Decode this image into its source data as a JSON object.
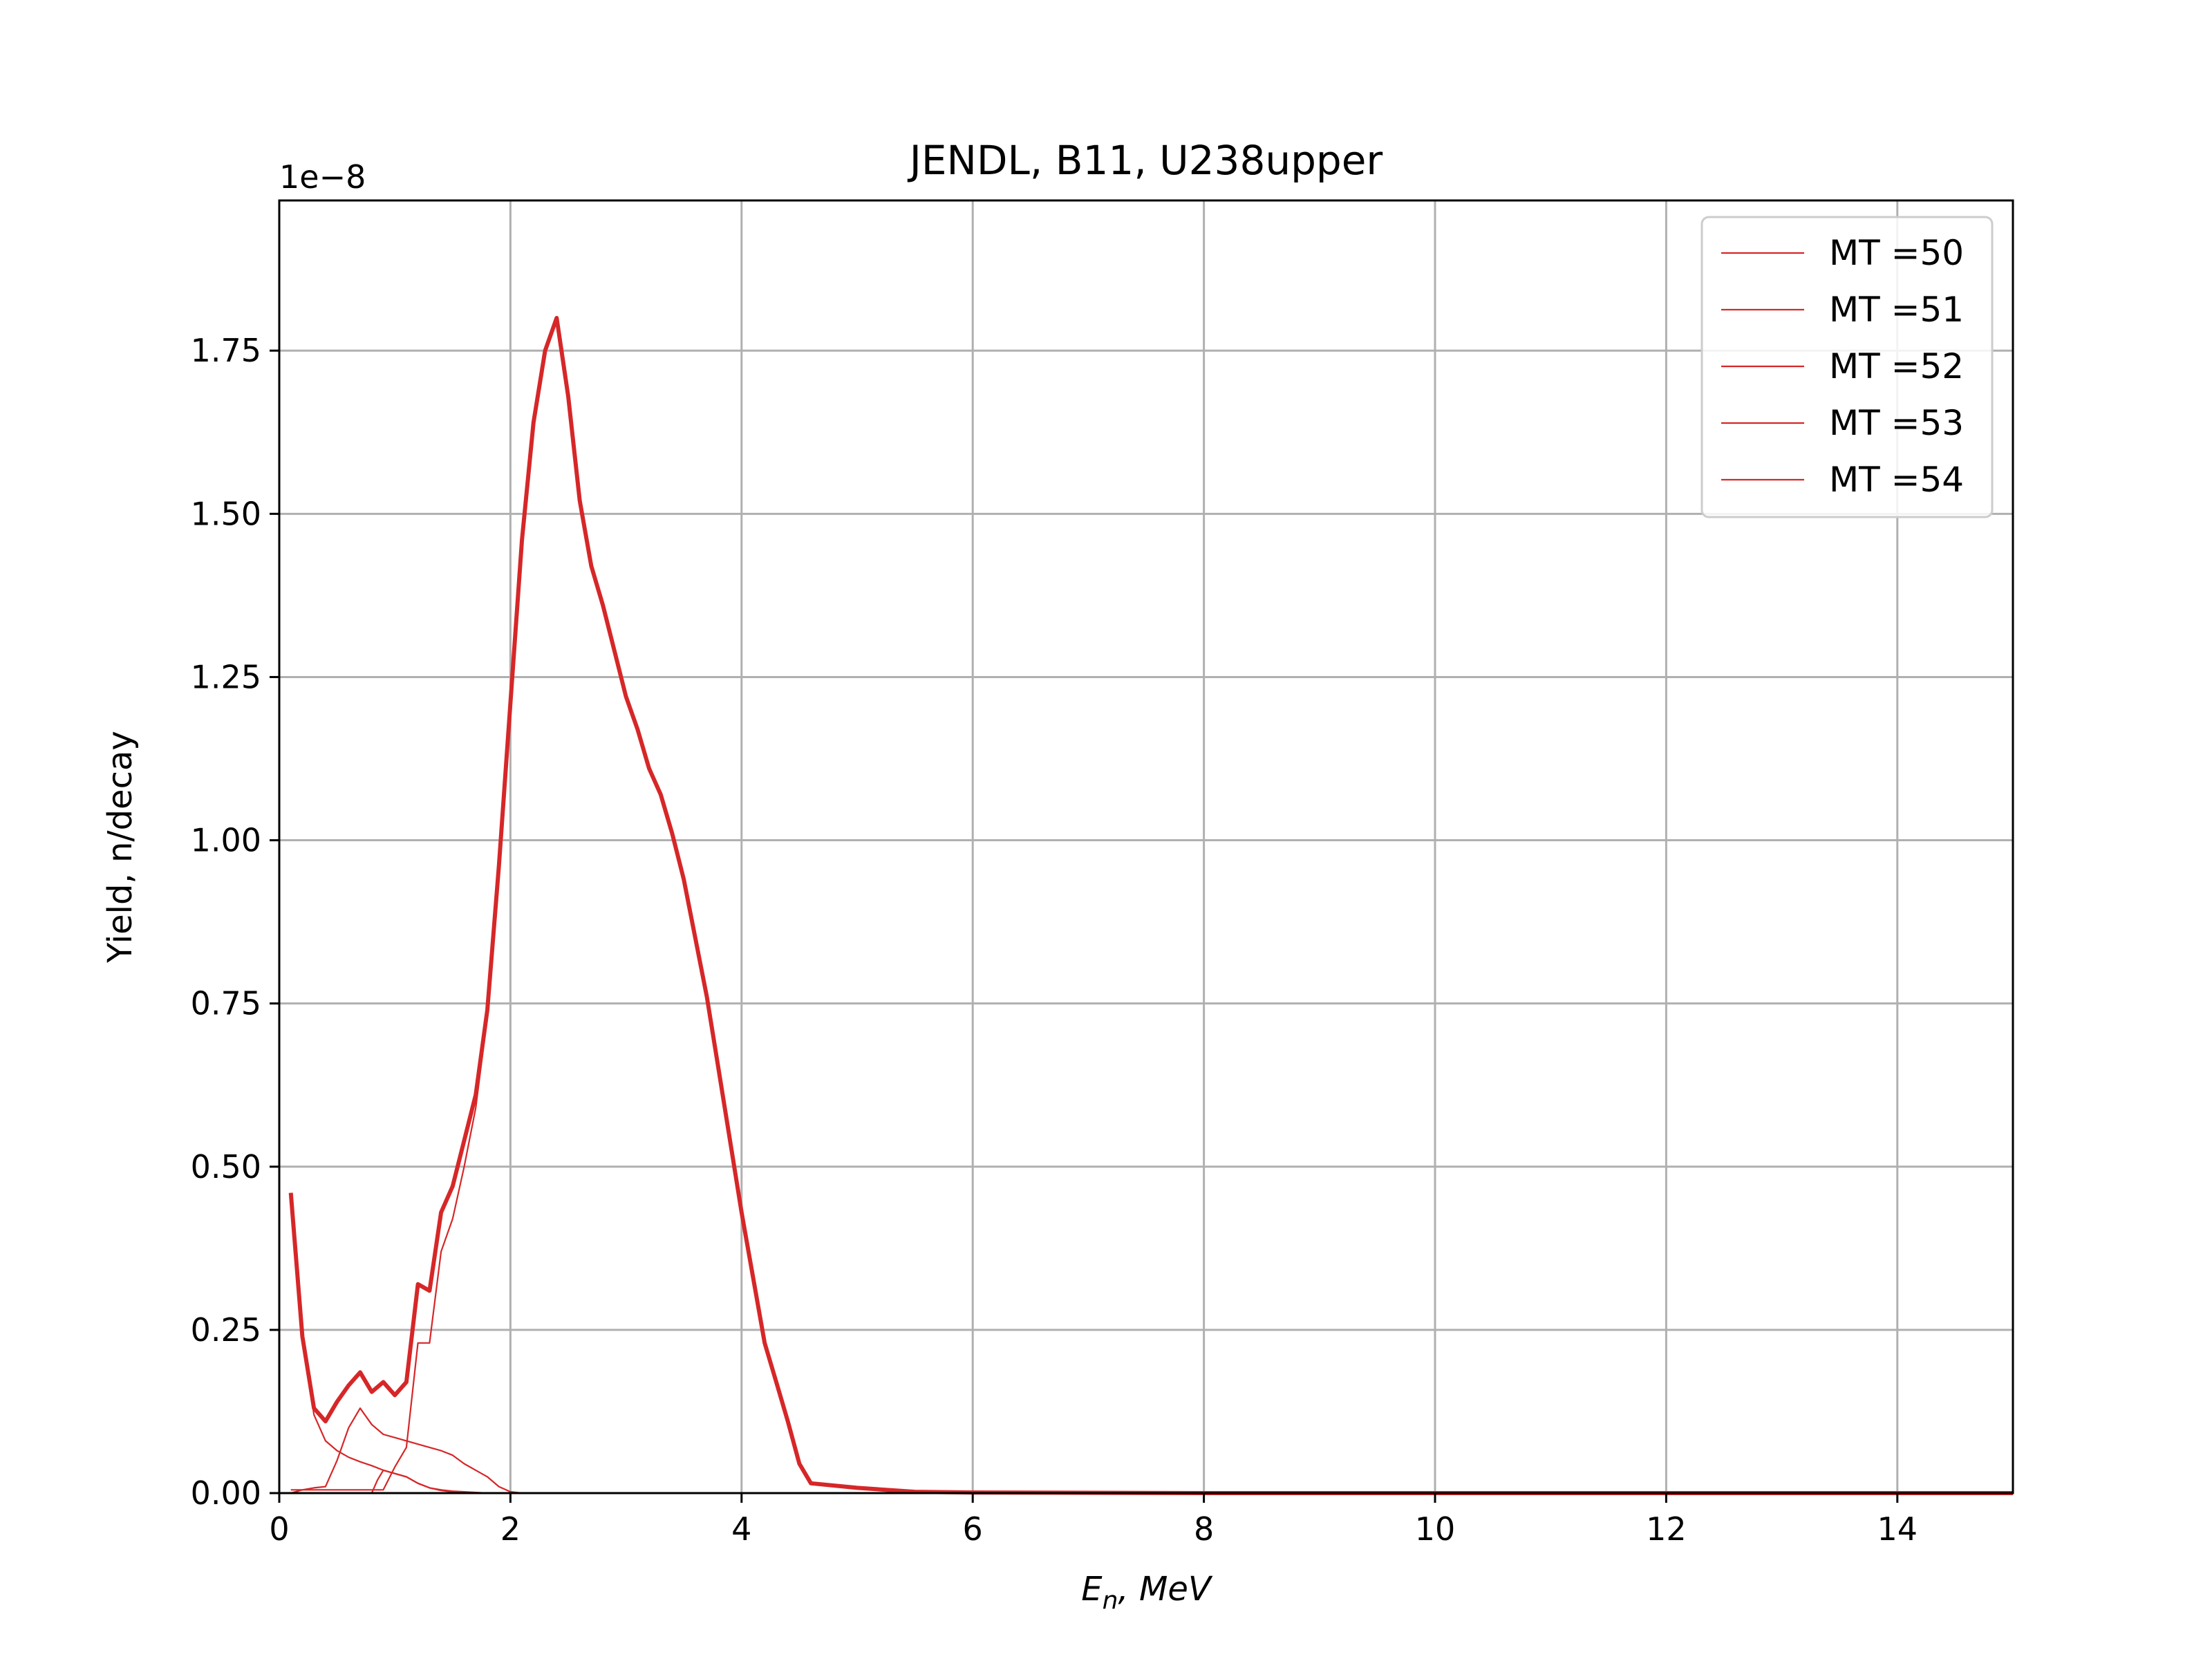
{
  "chart_data": {
    "type": "line",
    "title": "JENDL, B11, U238upper",
    "xlabel_main": "E",
    "xlabel_sub": "n",
    "xlabel_rest": ", MeV",
    "ylabel": "Yield, n/decay",
    "y_offset_label": "1e−8",
    "xlim": [
      0,
      15
    ],
    "ylim": [
      0,
      1.98
    ],
    "x_ticks": [
      0,
      2,
      4,
      6,
      8,
      10,
      12,
      14
    ],
    "x_tick_labels": [
      "0",
      "2",
      "4",
      "6",
      "8",
      "10",
      "12",
      "14"
    ],
    "y_ticks": [
      0,
      0.25,
      0.5,
      0.75,
      1.0,
      1.25,
      1.5,
      1.75
    ],
    "y_tick_labels": [
      "0.00",
      "0.25",
      "0.50",
      "0.75",
      "1.00",
      "1.25",
      "1.50",
      "1.75"
    ],
    "grid": true,
    "legend_position": "top-right",
    "line_color": "#d62728",
    "series": [
      {
        "name": "MT =50",
        "x": [
          0.1,
          0.2,
          0.3,
          0.4,
          0.5,
          0.6,
          0.7,
          0.8,
          0.9,
          1.0,
          1.1,
          1.2,
          1.3,
          1.4,
          1.5,
          1.6,
          1.7,
          1.8,
          1.9,
          2.0,
          2.1,
          2.2,
          2.3,
          2.4,
          2.5,
          2.6,
          2.7,
          2.8,
          2.9,
          3.0,
          3.1,
          3.2,
          3.3,
          3.4,
          3.5,
          3.6,
          3.7,
          3.8,
          3.9,
          4.0,
          4.1,
          4.2,
          4.3,
          4.4,
          4.5,
          4.6,
          5.0,
          5.5,
          6.0,
          8.0,
          10.0,
          12.0,
          14.0,
          15.0
        ],
        "values": [
          0.005,
          0.005,
          0.005,
          0.005,
          0.005,
          0.005,
          0.005,
          0.005,
          0.005,
          0.04,
          0.07,
          0.23,
          0.23,
          0.37,
          0.42,
          0.5,
          0.59,
          0.73,
          0.95,
          1.2,
          1.46,
          1.64,
          1.75,
          1.8,
          1.68,
          1.52,
          1.42,
          1.36,
          1.29,
          1.22,
          1.17,
          1.11,
          1.07,
          1.01,
          0.94,
          0.85,
          0.76,
          0.65,
          0.54,
          0.43,
          0.33,
          0.23,
          0.17,
          0.11,
          0.045,
          0.015,
          0.008,
          0.002,
          0.001,
          0.0,
          0.0,
          0.0,
          0.0,
          0.0
        ]
      },
      {
        "name": "MT =51",
        "x": [
          0.1,
          0.2,
          0.3,
          0.4,
          0.5,
          0.6,
          0.7,
          0.8,
          0.9,
          1.0,
          1.1,
          1.2,
          1.3,
          1.4,
          1.5,
          1.6,
          1.7,
          1.8,
          1.9,
          2.0,
          2.2,
          15.0
        ],
        "values": [
          0.46,
          0.24,
          0.12,
          0.08,
          0.065,
          0.055,
          0.048,
          0.042,
          0.035,
          0.03,
          0.025,
          0.015,
          0.008,
          0.004,
          0.002,
          0.001,
          0.0,
          0.0,
          0.0,
          0.0,
          0.0,
          0.0
        ]
      },
      {
        "name": "MT =52",
        "x": [
          0.1,
          0.2,
          0.3,
          0.4,
          0.5,
          0.6,
          0.7,
          0.8,
          0.9,
          1.0,
          1.1,
          1.2,
          1.3,
          1.4,
          1.5,
          1.6,
          1.7,
          1.8,
          1.9,
          2.0,
          2.1,
          15.0
        ],
        "values": [
          0.0,
          0.005,
          0.008,
          0.01,
          0.05,
          0.1,
          0.13,
          0.105,
          0.09,
          0.085,
          0.08,
          0.075,
          0.07,
          0.065,
          0.058,
          0.045,
          0.035,
          0.025,
          0.01,
          0.002,
          0.0,
          0.0
        ]
      },
      {
        "name": "MT =53",
        "x": [
          0.1,
          0.3,
          0.5,
          0.7,
          0.8,
          0.85,
          0.9,
          1.0,
          1.1,
          1.2,
          1.3,
          1.4,
          1.5,
          1.6,
          1.7,
          1.8,
          1.9,
          2.0,
          2.1,
          15.0
        ],
        "values": [
          0.0,
          0.0,
          0.0,
          0.0,
          0.0,
          0.02,
          0.035,
          0.03,
          0.025,
          0.015,
          0.008,
          0.005,
          0.003,
          0.002,
          0.001,
          0.0,
          0.0,
          0.0,
          0.0,
          0.0
        ]
      },
      {
        "name": "MT =54",
        "x": [
          0.1,
          0.5,
          1.0,
          1.5,
          2.0,
          15.0
        ],
        "values": [
          0.0,
          0.0,
          0.0,
          0.0,
          0.0,
          0.0
        ]
      }
    ],
    "total": {
      "x": [
        0.1,
        0.2,
        0.3,
        0.4,
        0.5,
        0.6,
        0.7,
        0.8,
        0.9,
        1.0,
        1.1,
        1.2,
        1.3,
        1.4,
        1.5,
        1.6,
        1.7,
        1.8,
        1.9,
        2.0,
        2.1,
        2.2,
        2.3,
        2.4,
        2.5,
        2.6,
        2.7,
        2.8,
        2.9,
        3.0,
        3.1,
        3.2,
        3.3,
        3.4,
        3.5,
        3.6,
        3.7,
        3.8,
        3.9,
        4.0,
        4.1,
        4.2,
        4.3,
        4.4,
        4.5,
        4.6,
        5.0,
        5.5,
        6.0,
        8.0,
        10.0,
        12.0,
        14.0,
        15.0
      ],
      "values": [
        0.46,
        0.24,
        0.13,
        0.11,
        0.14,
        0.165,
        0.185,
        0.155,
        0.17,
        0.15,
        0.17,
        0.32,
        0.31,
        0.43,
        0.47,
        0.54,
        0.61,
        0.74,
        0.96,
        1.21,
        1.46,
        1.64,
        1.75,
        1.8,
        1.68,
        1.52,
        1.42,
        1.36,
        1.29,
        1.22,
        1.17,
        1.11,
        1.07,
        1.01,
        0.94,
        0.85,
        0.76,
        0.65,
        0.54,
        0.43,
        0.33,
        0.23,
        0.17,
        0.11,
        0.045,
        0.015,
        0.008,
        0.002,
        0.001,
        0.0,
        0.0,
        0.0,
        0.0,
        0.0
      ]
    }
  }
}
